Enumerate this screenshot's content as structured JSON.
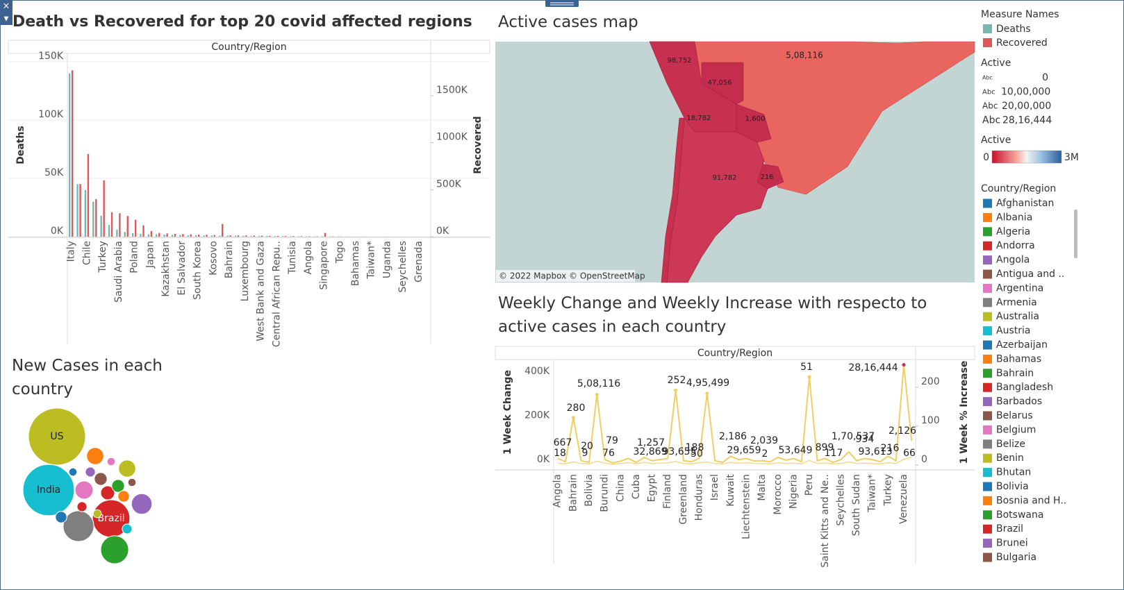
{
  "chart_data": [
    {
      "type": "bar",
      "title": "Death vs Recovered for top 20 covid affected regions",
      "x_label": "Country/Region",
      "legend_title": "Measure Names",
      "categories": [
        "Italy",
        null,
        "Chile",
        null,
        "Turkey",
        null,
        "Saudi Arabia",
        null,
        "Poland",
        null,
        "Japan",
        null,
        "Kazakhstan",
        null,
        "El Salvador",
        null,
        "South Korea",
        null,
        "Kosovo",
        null,
        "Bahrain",
        null,
        "Luxembourg",
        null,
        "West Bank and Gaza",
        null,
        "Central African Repu..",
        null,
        "Tunisia",
        null,
        "Angola",
        null,
        "Singapore",
        null,
        "Togo",
        null,
        "Bahamas",
        null,
        "Taiwan*",
        null,
        "Uganda",
        null,
        "Seychelles",
        null,
        "Grenada",
        null
      ],
      "series": [
        {
          "name": "Deaths",
          "color": "#76b7b2",
          "values": [
            140000,
            45000,
            40000,
            30000,
            18000,
            10000,
            6000,
            4000,
            3000,
            2500,
            2000,
            2000,
            1800,
            1500,
            1500,
            1200,
            1200,
            1000,
            1000,
            900,
            900,
            800,
            800,
            700,
            600,
            600,
            500,
            500,
            400,
            400,
            300,
            300,
            300,
            250,
            200,
            200,
            150,
            150,
            120,
            100,
            100,
            80,
            60,
            50,
            40,
            30
          ]
        },
        {
          "name": "Recovered",
          "color": "#e15759",
          "axis": "y2",
          "values": [
            1770000,
            560000,
            880000,
            400000,
            600000,
            260000,
            250000,
            220000,
            180000,
            120000,
            60000,
            40000,
            35000,
            30000,
            28000,
            25000,
            22000,
            20000,
            18000,
            135000,
            15000,
            14000,
            13000,
            12000,
            10000,
            9000,
            8000,
            7000,
            6000,
            5000,
            5000,
            4000,
            40000,
            3000,
            2500,
            2000,
            1500,
            1500,
            1000,
            1000,
            800,
            700,
            600,
            500,
            400,
            300
          ]
        }
      ],
      "ylim": [
        0,
        157000
      ],
      "yticks": [
        {
          "value": 0,
          "label": "0K"
        },
        {
          "value": 50000,
          "label": "50K"
        },
        {
          "value": 100000,
          "label": "100K"
        },
        {
          "value": 150000,
          "label": "150K"
        }
      ],
      "y2lim": [
        0,
        1950000
      ],
      "y2ticks": [
        {
          "value": 0,
          "label": "0K"
        },
        {
          "value": 500000,
          "label": "500K"
        },
        {
          "value": 1000000,
          "label": "1000K"
        },
        {
          "value": 1500000,
          "label": "1500K"
        }
      ],
      "grid": true
    },
    {
      "type": "bubble",
      "title": "New Cases in each country",
      "categories": [
        "US",
        "India",
        "Brazil",
        null,
        null,
        null,
        null,
        null,
        null,
        null,
        null,
        null,
        null,
        null,
        null,
        null,
        null,
        null,
        null,
        null,
        null
      ],
      "values": [
        100,
        81,
        43,
        29,
        24,
        13,
        9,
        9,
        10,
        6,
        5,
        5,
        4,
        4,
        3,
        3,
        3,
        2,
        2,
        2,
        2
      ],
      "colors": [
        "#bcbd22",
        "#17becf",
        "#d62728",
        "#7f7f7f",
        "#2ca02c",
        "#9467bd",
        "#bcbd22",
        "#ff7f0e",
        "#e377c2",
        "#d62728",
        "#8c564b",
        "#2ca02c",
        "#1f77b4",
        "#ff7f0e",
        "#9467bd",
        "#17becf",
        "#d62728",
        "#e377c2",
        "#bcbd22",
        "#1f77b4",
        "#8c564b"
      ]
    },
    {
      "type": "line",
      "title": "Weekly Change and Weekly Increase with respecto to active cases in each country",
      "x_label": "Country/Region",
      "categories": [
        "Angola",
        null,
        "Bahrain",
        null,
        "Bolivia",
        null,
        "Burundi",
        null,
        "China",
        null,
        "Cuba",
        null,
        "Egypt",
        null,
        "Finland",
        null,
        "Greenland",
        null,
        "Honduras",
        null,
        "Israel",
        null,
        "Kuwait",
        null,
        "Liechtenstein",
        null,
        "Malta",
        null,
        "Morocco",
        null,
        "Nigeria",
        null,
        "Peru",
        null,
        "Saint Kitts and Ne..",
        null,
        "Seychelles",
        null,
        "South Sudan",
        null,
        "Taiwan*",
        null,
        "Turkey",
        null,
        "Venezuela",
        null
      ],
      "series": [
        {
          "name": "1 Week Change",
          "color": "#f1ce63",
          "values": [
            30000,
            15000,
            215000,
            20000,
            12000,
            320000,
            25000,
            10000,
            18000,
            30000,
            12000,
            35000,
            20000,
            25000,
            30000,
            340000,
            20000,
            15000,
            30000,
            325000,
            20000,
            12000,
            40000,
            25000,
            30000,
            18000,
            20000,
            15000,
            35000,
            22000,
            30000,
            15000,
            400000,
            20000,
            30000,
            12000,
            25000,
            60000,
            20000,
            30000,
            25000,
            15000,
            40000,
            20000,
            455000,
            110000
          ]
        },
        {
          "name": "1 Week % Increase",
          "color": "#f4d98a",
          "axis": "y2",
          "values": [
            5,
            3,
            8,
            4,
            3,
            10,
            5,
            2,
            4,
            6,
            3,
            7,
            4,
            5,
            6,
            9,
            4,
            3,
            6,
            8,
            4,
            3,
            7,
            5,
            6,
            4,
            4,
            3,
            6,
            4,
            5,
            3,
            12,
            4,
            5,
            3,
            4,
            8,
            4,
            5,
            4,
            3,
            6,
            4,
            15,
            20
          ]
        }
      ],
      "ylim": [
        0,
        479000
      ],
      "yticks": [
        {
          "value": 0,
          "label": "0K"
        },
        {
          "value": 200000,
          "label": "200K"
        },
        {
          "value": 400000,
          "label": "400K"
        }
      ],
      "y2lim": [
        0,
        271
      ],
      "y2ticks": [
        0,
        100,
        200
      ],
      "annotations": [
        "667",
        "18",
        "280",
        "20",
        "9",
        "5,08,116",
        "79",
        "76",
        "1,257",
        "32,869",
        "93,655",
        "188",
        "50",
        "252",
        "4,95,499",
        "2,186",
        "29,659",
        "2,039",
        "2",
        "53,649",
        "51",
        "899",
        "117",
        "1,70,537",
        "934",
        "93,613",
        "216",
        "28,16,444",
        "2,126",
        "66"
      ]
    }
  ],
  "map": {
    "title": "Active cases map",
    "labels": [
      "98,752",
      "5,08,116",
      "47,056",
      "18,782",
      "1,600",
      "91,782",
      "216"
    ],
    "attribution": "© 2022 Mapbox © OpenStreetMap"
  },
  "legends": {
    "active_size": {
      "title": "Active",
      "symbol": "Abc",
      "items": [
        "0",
        "10,00,000",
        "20,00,000",
        "28,16,444"
      ]
    },
    "active_color": {
      "title": "Active",
      "min": "0",
      "max": "3M"
    },
    "country": {
      "title": "Country/Region",
      "items": [
        {
          "name": "Afghanistan",
          "color": "#1f77b4"
        },
        {
          "name": "Albania",
          "color": "#ff7f0e"
        },
        {
          "name": "Algeria",
          "color": "#2ca02c"
        },
        {
          "name": "Andorra",
          "color": "#d62728"
        },
        {
          "name": "Angola",
          "color": "#9467bd"
        },
        {
          "name": "Antigua and ..",
          "color": "#8c564b"
        },
        {
          "name": "Argentina",
          "color": "#e377c2"
        },
        {
          "name": "Armenia",
          "color": "#7f7f7f"
        },
        {
          "name": "Australia",
          "color": "#bcbd22"
        },
        {
          "name": "Austria",
          "color": "#17becf"
        },
        {
          "name": "Azerbaijan",
          "color": "#1f77b4"
        },
        {
          "name": "Bahamas",
          "color": "#ff7f0e"
        },
        {
          "name": "Bahrain",
          "color": "#2ca02c"
        },
        {
          "name": "Bangladesh",
          "color": "#d62728"
        },
        {
          "name": "Barbados",
          "color": "#9467bd"
        },
        {
          "name": "Belarus",
          "color": "#8c564b"
        },
        {
          "name": "Belgium",
          "color": "#e377c2"
        },
        {
          "name": "Belize",
          "color": "#7f7f7f"
        },
        {
          "name": "Benin",
          "color": "#bcbd22"
        },
        {
          "name": "Bhutan",
          "color": "#17becf"
        },
        {
          "name": "Bolivia",
          "color": "#1f77b4"
        },
        {
          "name": "Bosnia and H..",
          "color": "#ff7f0e"
        },
        {
          "name": "Botswana",
          "color": "#2ca02c"
        },
        {
          "name": "Brazil",
          "color": "#d62728"
        },
        {
          "name": "Brunei",
          "color": "#9467bd"
        },
        {
          "name": "Bulgaria",
          "color": "#8c564b"
        }
      ]
    }
  }
}
